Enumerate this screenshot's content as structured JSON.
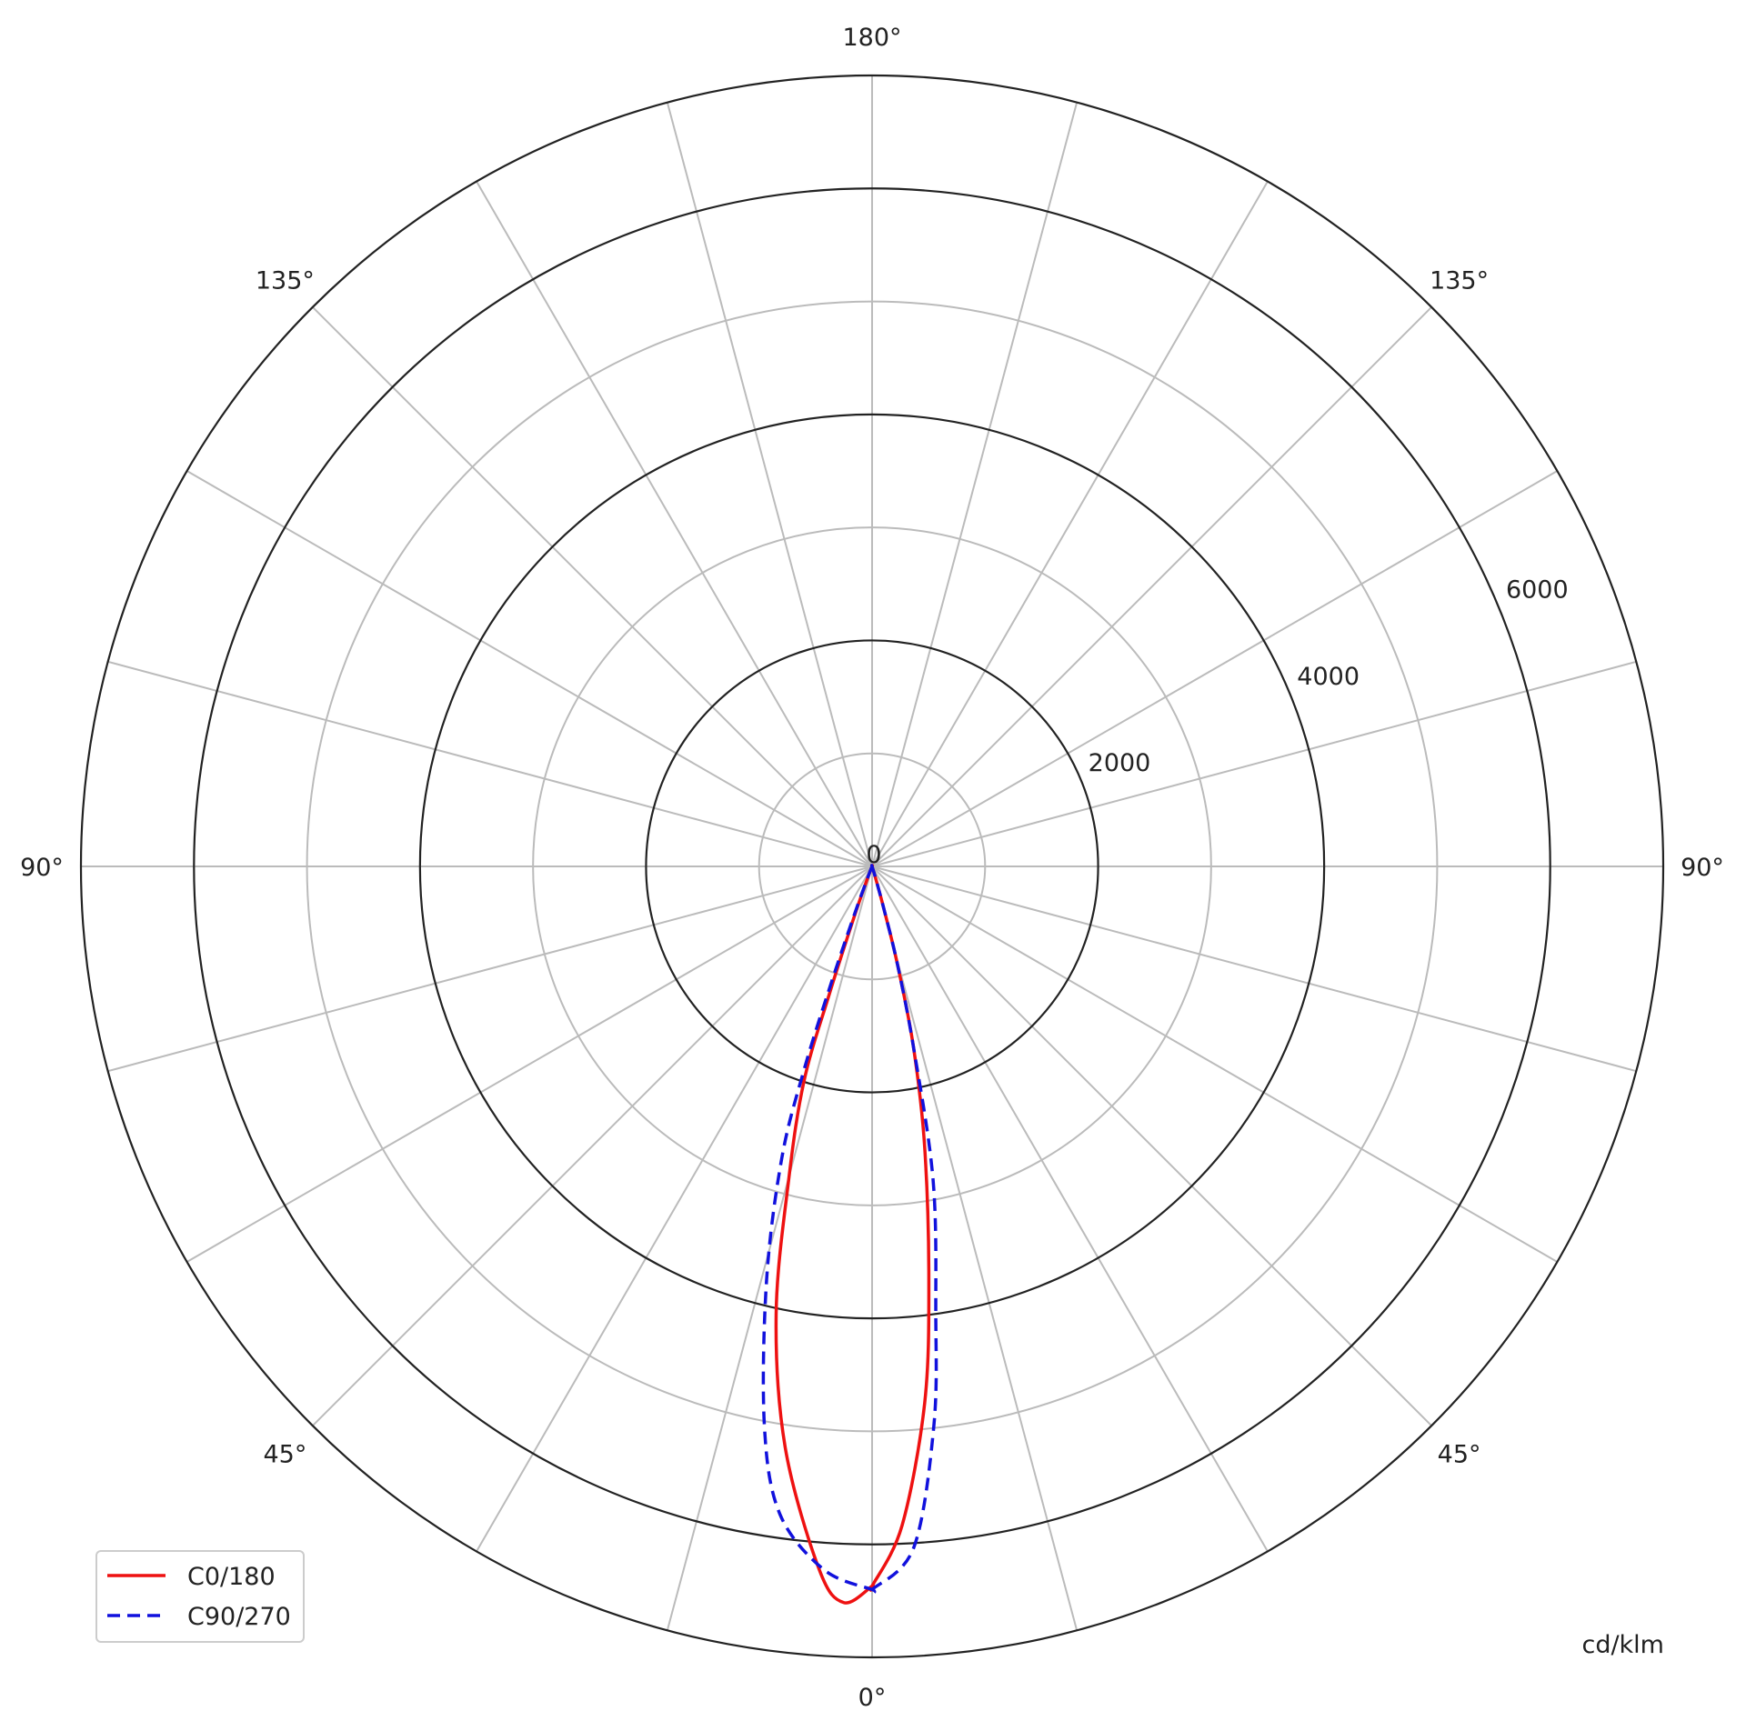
{
  "chart_data": {
    "type": "polar",
    "unit_label": "cd/klm",
    "rlim": [
      0,
      7000
    ],
    "radial_ticks": [
      "0",
      "2000",
      "4000",
      "6000"
    ],
    "radial_tick_values": [
      0,
      2000,
      4000,
      6000
    ],
    "major_rings": [
      2000,
      4000,
      6000,
      7000
    ],
    "minor_rings": [
      1000,
      3000,
      5000
    ],
    "spoke_step_deg": 15,
    "grid": true,
    "angle_labels": [
      {
        "text": "0°",
        "gamma": 0,
        "side": "bottom"
      },
      {
        "text": "45°",
        "gamma": 45,
        "side": "left"
      },
      {
        "text": "45°",
        "gamma": 45,
        "side": "right"
      },
      {
        "text": "90°",
        "gamma": 90,
        "side": "left"
      },
      {
        "text": "90°",
        "gamma": 90,
        "side": "right"
      },
      {
        "text": "135°",
        "gamma": 135,
        "side": "left"
      },
      {
        "text": "135°",
        "gamma": 135,
        "side": "right"
      },
      {
        "text": "180°",
        "gamma": 180,
        "side": "top"
      }
    ],
    "legend_position": "bottom-left",
    "series": [
      {
        "name": "C0/180",
        "color": "#ee1111",
        "style": "solid",
        "right_half": [
          [
            0,
            6370
          ],
          [
            2.6,
            5840
          ],
          [
            5.6,
            4770
          ],
          [
            7.8,
            3700
          ],
          [
            10.6,
            2530
          ],
          [
            12.9,
            1640
          ],
          [
            14.5,
            900
          ],
          [
            15.5,
            400
          ],
          [
            16.5,
            120
          ],
          [
            18,
            0
          ],
          [
            90,
            0
          ]
        ],
        "left_half": [
          [
            0,
            6370
          ],
          [
            2.2,
            6520
          ],
          [
            4.3,
            6240
          ],
          [
            8.5,
            5200
          ],
          [
            12.1,
            4050
          ],
          [
            14.9,
            2870
          ],
          [
            17.6,
            1990
          ],
          [
            18.5,
            1200
          ],
          [
            19.5,
            500
          ],
          [
            21,
            120
          ],
          [
            23,
            0
          ],
          [
            90,
            0
          ]
        ]
      },
      {
        "name": "C90/270",
        "color": "#1111dd",
        "style": "dashed",
        "right_half": [
          [
            0,
            6400
          ],
          [
            3.5,
            6040
          ],
          [
            6.3,
            4980
          ],
          [
            8.1,
            4000
          ],
          [
            11,
            2830
          ],
          [
            12.9,
            1640
          ],
          [
            14.5,
            900
          ],
          [
            15.5,
            400
          ],
          [
            16.5,
            120
          ],
          [
            18,
            0
          ],
          [
            90,
            0
          ]
        ],
        "left_half": [
          [
            0,
            6400
          ],
          [
            3.9,
            6240
          ],
          [
            8.1,
            5790
          ],
          [
            10.9,
            5040
          ],
          [
            14.3,
            3780
          ],
          [
            17.2,
            2700
          ],
          [
            18.5,
            1890
          ],
          [
            19.3,
            1100
          ],
          [
            20.2,
            450
          ],
          [
            21.5,
            100
          ],
          [
            23,
            0
          ],
          [
            90,
            0
          ]
        ]
      }
    ]
  }
}
